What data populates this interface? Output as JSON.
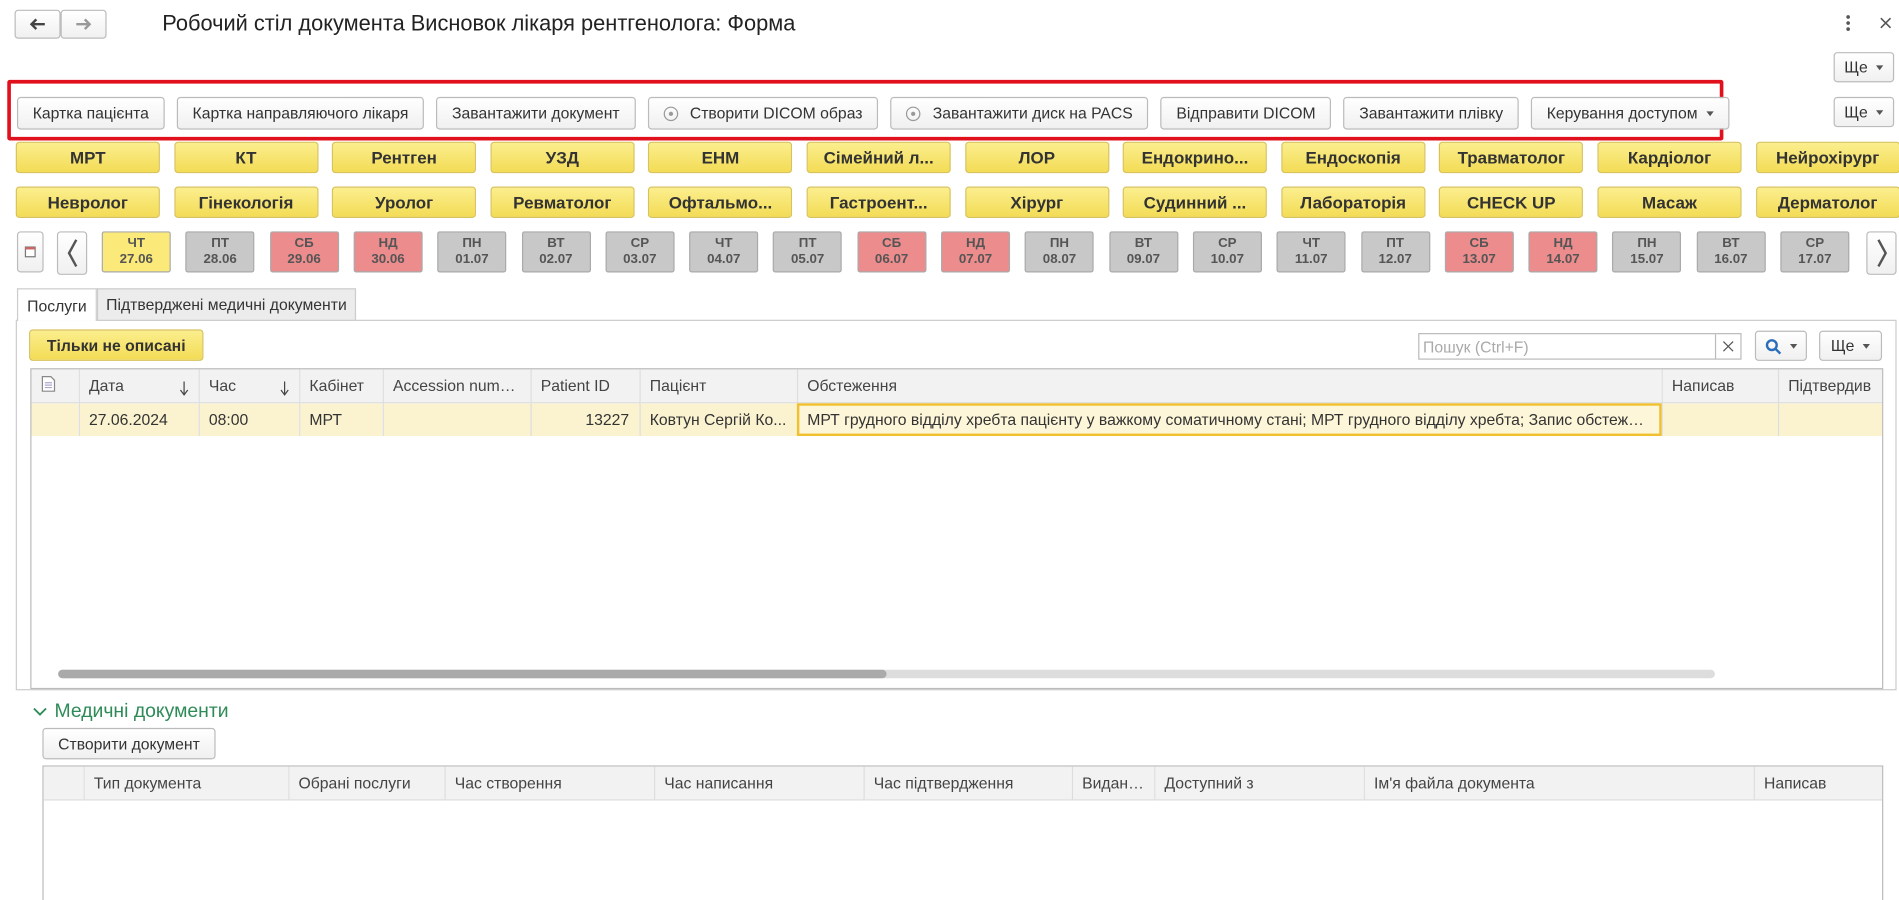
{
  "header": {
    "title": "Робочий стіл документа Висновок лікаря рентгенолога: Форма",
    "more": "Ще"
  },
  "toolbar": {
    "buttons": [
      "Картка пацієнта",
      "Картка направляючого лікаря",
      "Завантажити документ",
      "Створити DICOM образ",
      "Завантажити диск на PACS",
      "Відправити DICOM",
      "Завантажити плівку",
      "Керування доступом"
    ],
    "more": "Ще"
  },
  "departments": {
    "row1": [
      "МРТ",
      "КТ",
      "Рентген",
      "УЗД",
      "ЕНМ",
      "Сімейний л...",
      "ЛОР",
      "Ендокрино...",
      "Ендоскопія",
      "Травматолог",
      "Кардіолог",
      "Нейрохірург"
    ],
    "row2": [
      "Невролог",
      "Гінекологія",
      "Уролог",
      "Ревматолог",
      "Офтальмо...",
      "Гастроент...",
      "Хірург",
      "Судинний ...",
      "Лабораторія",
      "CHECK UP",
      "Масаж",
      "Дерматолог"
    ]
  },
  "dates": [
    {
      "day": "ЧТ",
      "date": "27.06",
      "color": "#fbe97a"
    },
    {
      "day": "ПТ",
      "date": "28.06",
      "color": "#c8c8c8"
    },
    {
      "day": "СБ",
      "date": "29.06",
      "color": "#ec8c8c"
    },
    {
      "day": "НД",
      "date": "30.06",
      "color": "#ec8c8c"
    },
    {
      "day": "ПН",
      "date": "01.07",
      "color": "#c8c8c8"
    },
    {
      "day": "ВТ",
      "date": "02.07",
      "color": "#c8c8c8"
    },
    {
      "day": "СР",
      "date": "03.07",
      "color": "#c8c8c8"
    },
    {
      "day": "ЧТ",
      "date": "04.07",
      "color": "#c8c8c8"
    },
    {
      "day": "ПТ",
      "date": "05.07",
      "color": "#c8c8c8"
    },
    {
      "day": "СБ",
      "date": "06.07",
      "color": "#ec8c8c"
    },
    {
      "day": "НД",
      "date": "07.07",
      "color": "#ec8c8c"
    },
    {
      "day": "ПН",
      "date": "08.07",
      "color": "#c8c8c8"
    },
    {
      "day": "ВТ",
      "date": "09.07",
      "color": "#c8c8c8"
    },
    {
      "day": "СР",
      "date": "10.07",
      "color": "#c8c8c8"
    },
    {
      "day": "ЧТ",
      "date": "11.07",
      "color": "#c8c8c8"
    },
    {
      "day": "ПТ",
      "date": "12.07",
      "color": "#c8c8c8"
    },
    {
      "day": "СБ",
      "date": "13.07",
      "color": "#ec8c8c"
    },
    {
      "day": "НД",
      "date": "14.07",
      "color": "#ec8c8c"
    },
    {
      "day": "ПН",
      "date": "15.07",
      "color": "#c8c8c8"
    },
    {
      "day": "ВТ",
      "date": "16.07",
      "color": "#c8c8c8"
    },
    {
      "day": "СР",
      "date": "17.07",
      "color": "#c8c8c8"
    }
  ],
  "tabs": [
    "Послуги",
    "Підтверджені медичні документи"
  ],
  "services": {
    "filter": "Тільки не описані",
    "search_placeholder": "Пошук (Ctrl+F)",
    "more": "Ще",
    "columns": [
      "Дата",
      "Час",
      "Кабінет",
      "Accession numb...",
      "Patient ID",
      "Пацієнт",
      "Обстеження",
      "Написав",
      "Підтвердив"
    ],
    "rows": [
      [
        "27.06.2024",
        "08:00",
        "МРТ",
        null,
        "13227",
        "Ковтун Сергій Ко...",
        "МРТ грудного відділу хребта пацієнту у важкому соматичному стані; МРТ грудного відділу хребта; Запис обстеженн...",
        null,
        null
      ]
    ]
  },
  "documents": {
    "title": "Медичні документи",
    "create": "Створити документ",
    "columns": [
      "Тип документа",
      "Обрані послуги",
      "Час створення",
      "Час написання",
      "Час підтвердження",
      "Виданий",
      "Доступний з",
      "Ім'я файла документа",
      "Написав"
    ]
  }
}
